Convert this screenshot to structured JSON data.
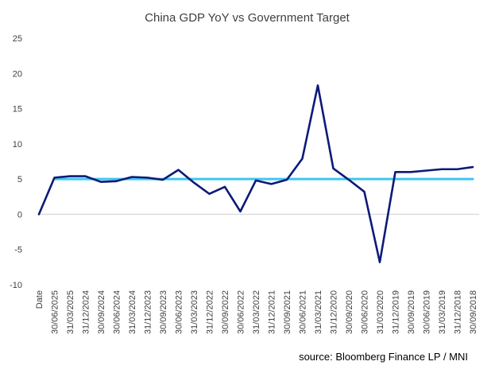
{
  "chart_data": {
    "type": "line",
    "title": "China GDP YoY vs Government Target",
    "source": "source: Bloomberg Finance LP / MNI",
    "categories": [
      "Date",
      "30/06/2025",
      "31/03/2025",
      "31/12/2024",
      "30/09/2024",
      "30/06/2024",
      "31/03/2024",
      "31/12/2023",
      "30/09/2023",
      "30/06/2023",
      "31/03/2023",
      "31/12/2022",
      "30/09/2022",
      "30/06/2022",
      "31/03/2022",
      "31/12/2021",
      "30/09/2021",
      "30/06/2021",
      "31/03/2021",
      "31/12/2020",
      "30/09/2020",
      "30/06/2020",
      "31/03/2020",
      "31/12/2019",
      "30/09/2019",
      "30/06/2019",
      "31/03/2019",
      "31/12/2018",
      "30/09/2018"
    ],
    "series": [
      {
        "name": "China GDP YoY",
        "color": "#0b1a78",
        "values": [
          0,
          5.2,
          5.4,
          5.4,
          4.6,
          4.7,
          5.3,
          5.2,
          4.9,
          6.3,
          4.5,
          2.9,
          3.9,
          0.4,
          4.8,
          4.3,
          4.9,
          7.9,
          18.3,
          6.5,
          4.9,
          3.2,
          -6.8,
          6.0,
          6.0,
          6.2,
          6.4,
          6.4,
          6.7
        ]
      },
      {
        "name": "Government Target",
        "color": "#3ec6f0",
        "values": [
          null,
          5,
          5,
          5,
          5,
          5,
          5,
          5,
          5,
          5,
          5,
          5,
          5,
          5,
          5,
          5,
          5,
          5,
          5,
          5,
          5,
          5,
          5,
          5,
          5,
          5,
          5,
          5,
          5
        ]
      }
    ],
    "yticks": [
      25,
      20,
      15,
      10,
      5,
      0,
      -5,
      -10
    ],
    "ylim": [
      -10,
      25
    ],
    "xlabel": "",
    "ylabel": "",
    "grid": false
  }
}
